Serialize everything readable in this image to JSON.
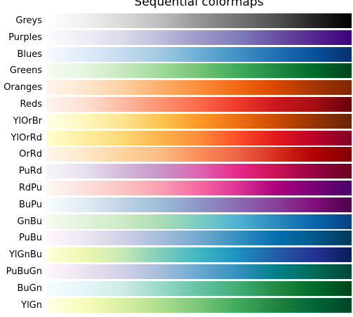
{
  "chart_data": {
    "type": "heatmap",
    "title": "Sequential colormaps",
    "colormaps": [
      {
        "name": "Greys",
        "colors": [
          "#ffffff",
          "#f0f0f0",
          "#d9d9d9",
          "#bdbdbd",
          "#969696",
          "#737373",
          "#525252",
          "#252525",
          "#000000"
        ]
      },
      {
        "name": "Purples",
        "colors": [
          "#fcfbfd",
          "#efedf5",
          "#dadaeb",
          "#bcbddc",
          "#9e9ac8",
          "#807dba",
          "#6a51a3",
          "#54278f",
          "#3f007d"
        ]
      },
      {
        "name": "Blues",
        "colors": [
          "#f7fbff",
          "#deebf7",
          "#c6dbef",
          "#9ecae1",
          "#6baed6",
          "#4292c6",
          "#2171b5",
          "#08519c",
          "#08306b"
        ]
      },
      {
        "name": "Greens",
        "colors": [
          "#f7fcf5",
          "#e5f5e0",
          "#c7e9c0",
          "#a1d99b",
          "#74c476",
          "#41ab5d",
          "#238b45",
          "#006d2c",
          "#00441b"
        ]
      },
      {
        "name": "Oranges",
        "colors": [
          "#fff5eb",
          "#fee6ce",
          "#fdd0a2",
          "#fdae6b",
          "#fd8d3c",
          "#f16913",
          "#d94801",
          "#a63603",
          "#7f2704"
        ]
      },
      {
        "name": "Reds",
        "colors": [
          "#fff5f0",
          "#fee0d2",
          "#fcbba1",
          "#fc9272",
          "#fb6a4a",
          "#ef3b2c",
          "#cb181d",
          "#a50f15",
          "#67000d"
        ]
      },
      {
        "name": "YlOrBr",
        "colors": [
          "#ffffe5",
          "#fff7bc",
          "#fee391",
          "#fec44f",
          "#fe9929",
          "#ec7014",
          "#cc4c02",
          "#993404",
          "#662506"
        ]
      },
      {
        "name": "YlOrRd",
        "colors": [
          "#ffffcc",
          "#ffeda0",
          "#fed976",
          "#feb24c",
          "#fd8d3c",
          "#fc4e2a",
          "#e31a1c",
          "#bd0026",
          "#800026"
        ]
      },
      {
        "name": "OrRd",
        "colors": [
          "#fff7ec",
          "#fee8c8",
          "#fdd49e",
          "#fdbb84",
          "#fc8d59",
          "#ef6548",
          "#d7301f",
          "#b30000",
          "#7f0000"
        ]
      },
      {
        "name": "PuRd",
        "colors": [
          "#f7f4f9",
          "#e7e1ef",
          "#d4b9da",
          "#c994c7",
          "#df65b0",
          "#e7298a",
          "#ce1256",
          "#980043",
          "#67001f"
        ]
      },
      {
        "name": "RdPu",
        "colors": [
          "#fff7f3",
          "#fde0dd",
          "#fcc5c0",
          "#fa9fb5",
          "#f768a1",
          "#dd3497",
          "#ae017e",
          "#7a0177",
          "#49006a"
        ]
      },
      {
        "name": "BuPu",
        "colors": [
          "#f7fcfd",
          "#e0ecf4",
          "#bfd3e6",
          "#9ebcda",
          "#8c96c6",
          "#8c6bb1",
          "#88419d",
          "#810f7c",
          "#4d004b"
        ]
      },
      {
        "name": "GnBu",
        "colors": [
          "#f7fcf0",
          "#e0f3db",
          "#ccebc5",
          "#a8ddb5",
          "#7bccc4",
          "#4eb3d3",
          "#2b8cbe",
          "#0868ac",
          "#084081"
        ]
      },
      {
        "name": "PuBu",
        "colors": [
          "#fff7fb",
          "#ece7f2",
          "#d0d1e6",
          "#a6bddb",
          "#74a9cf",
          "#3690c0",
          "#0570b0",
          "#045a8d",
          "#023858"
        ]
      },
      {
        "name": "YlGnBu",
        "colors": [
          "#ffffd9",
          "#edf8b1",
          "#c7e9b4",
          "#7fcdbb",
          "#41b6c4",
          "#1d91c0",
          "#225ea8",
          "#253494",
          "#081d58"
        ]
      },
      {
        "name": "PuBuGn",
        "colors": [
          "#fff7fb",
          "#ece2f0",
          "#d0d1e6",
          "#a6bddb",
          "#67a9cf",
          "#3690c0",
          "#02818a",
          "#016c59",
          "#014636"
        ]
      },
      {
        "name": "BuGn",
        "colors": [
          "#f7fcfd",
          "#e5f5f9",
          "#ccece6",
          "#99d8c9",
          "#66c2a4",
          "#41ae76",
          "#238b45",
          "#006d2c",
          "#00441b"
        ]
      },
      {
        "name": "YlGn",
        "colors": [
          "#ffffe5",
          "#f7fcb9",
          "#d9f0a3",
          "#addd8e",
          "#78c679",
          "#41ab5d",
          "#238443",
          "#006837",
          "#004529"
        ]
      }
    ]
  }
}
